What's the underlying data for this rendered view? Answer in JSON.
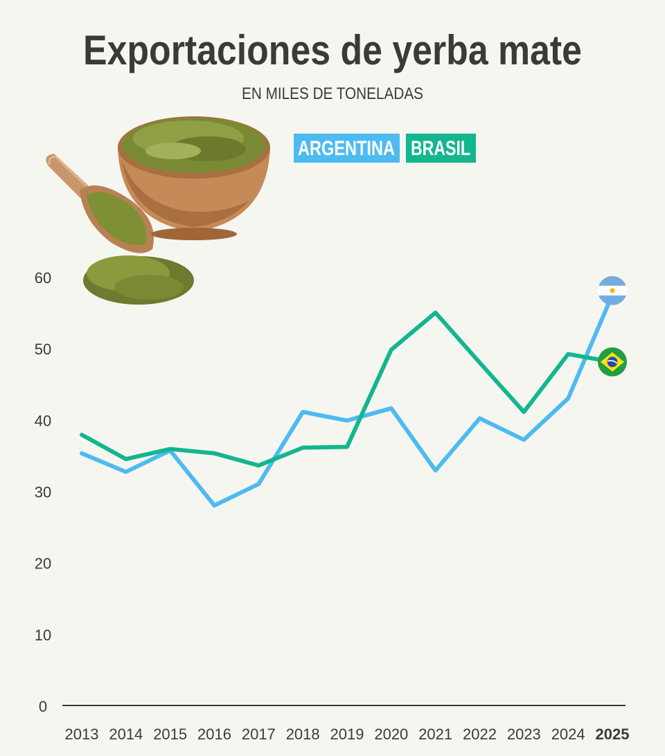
{
  "chart_data": {
    "type": "line",
    "title": "Exportaciones de yerba mate",
    "subtitle": "EN MILES DE TONELADAS",
    "x": [
      "2013",
      "2014",
      "2015",
      "2016",
      "2017",
      "2018",
      "2019",
      "2020",
      "2021",
      "2022",
      "2023",
      "2024",
      "2025"
    ],
    "highlight_x": "2025",
    "ylim": [
      0,
      60
    ],
    "yticks": [
      0,
      10,
      20,
      30,
      40,
      50,
      60
    ],
    "grid": false,
    "legend_position": "top-center",
    "series": [
      {
        "name": "ARGENTINA",
        "color": "#4dbbf0",
        "end_icon": "argentina-flag-icon",
        "values": [
          35.3,
          32.7,
          35.7,
          28.0,
          31.0,
          41.1,
          39.9,
          41.6,
          32.9,
          40.2,
          37.2,
          43.0,
          57.5
        ]
      },
      {
        "name": "BRASIL",
        "color": "#13b68e",
        "end_icon": "brazil-flag-icon",
        "values": [
          37.9,
          34.5,
          35.9,
          35.3,
          33.6,
          36.1,
          36.2,
          49.8,
          55.0,
          48.0,
          41.1,
          49.2,
          48.1
        ]
      }
    ],
    "image": "yerba-mate-bowl-and-scoop-image"
  }
}
